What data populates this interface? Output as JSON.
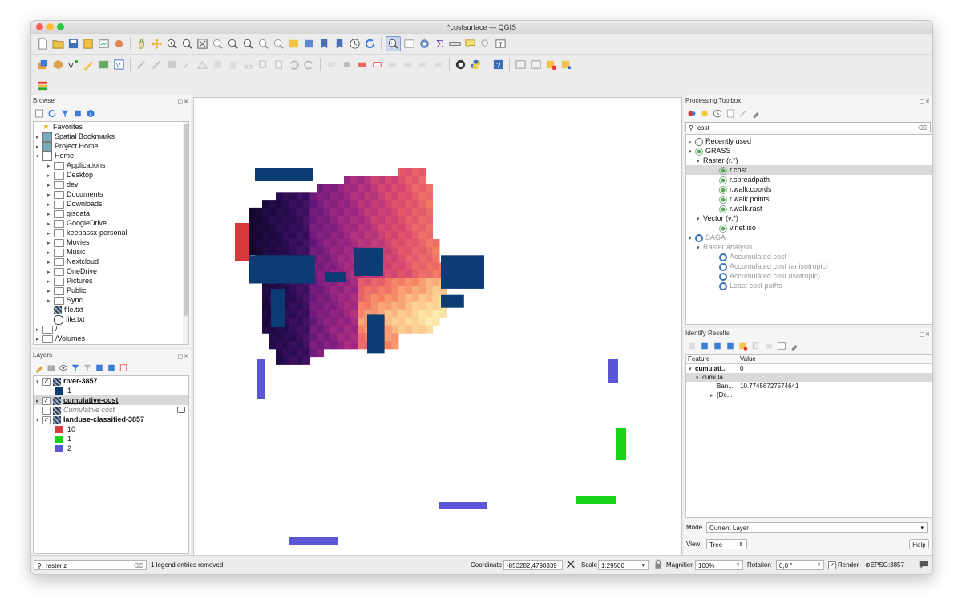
{
  "window": {
    "title": "*costsurface — QGIS"
  },
  "browser": {
    "title": "Browser",
    "items": [
      {
        "label": "Favorites",
        "icon": "star-icon"
      },
      {
        "label": "Spatial Bookmarks",
        "icon": "bookmark-icon"
      },
      {
        "label": "Project Home",
        "icon": "project-home-icon"
      },
      {
        "label": "Home",
        "icon": "home-icon"
      },
      {
        "label": "Applications",
        "icon": "folder-icon"
      },
      {
        "label": "Desktop",
        "icon": "folder-icon"
      },
      {
        "label": "dev",
        "icon": "folder-icon"
      },
      {
        "label": "Documents",
        "icon": "folder-icon"
      },
      {
        "label": "Downloads",
        "icon": "folder-icon"
      },
      {
        "label": "gisdata",
        "icon": "folder-icon"
      },
      {
        "label": "GoogleDrive",
        "icon": "folder-icon"
      },
      {
        "label": "keepassx-personal",
        "icon": "folder-icon"
      },
      {
        "label": "Movies",
        "icon": "folder-icon"
      },
      {
        "label": "Music",
        "icon": "folder-icon"
      },
      {
        "label": "Nextcloud",
        "icon": "folder-icon"
      },
      {
        "label": "OneDrive",
        "icon": "folder-icon"
      },
      {
        "label": "Pictures",
        "icon": "folder-icon"
      },
      {
        "label": "Public",
        "icon": "folder-icon"
      },
      {
        "label": "Sync",
        "icon": "folder-icon"
      },
      {
        "label": "file.txt",
        "icon": "raster-file-icon"
      },
      {
        "label": "file.txt",
        "icon": "vector-file-icon"
      },
      {
        "label": "/",
        "icon": "folder-icon"
      },
      {
        "label": "/Volumes",
        "icon": "folder-icon"
      }
    ]
  },
  "layers": {
    "title": "Layers",
    "items": [
      {
        "label": "river-3857",
        "checked": true
      },
      {
        "label": "1",
        "swatch": "#0b3c74"
      },
      {
        "label": "cumulative-cost",
        "checked": true
      },
      {
        "label": "Cumulative cost",
        "checked": false
      },
      {
        "label": "landuse-classified-3857",
        "checked": true
      },
      {
        "label": "10",
        "swatch": "#d63a3a"
      },
      {
        "label": "1",
        "swatch": "#19d319"
      },
      {
        "label": "2",
        "swatch": "#5b56d6"
      }
    ]
  },
  "toolbox": {
    "title": "Processing Toolbox",
    "search": "cost",
    "items": [
      {
        "label": "Recently used"
      },
      {
        "label": "GRASS"
      },
      {
        "label": "Raster (r.*)"
      },
      {
        "label": "r.cost"
      },
      {
        "label": "r.spreadpath"
      },
      {
        "label": "r.walk.coords"
      },
      {
        "label": "r.walk.points"
      },
      {
        "label": "r.walk.rast"
      },
      {
        "label": "Vector (v.*)"
      },
      {
        "label": "v.net.iso"
      },
      {
        "label": "SAGA"
      },
      {
        "label": "Raster analysis"
      },
      {
        "label": "Accumulated cost"
      },
      {
        "label": "Accumulated cost (anisotropic)"
      },
      {
        "label": "Accumulated cost (isotropic)"
      },
      {
        "label": "Least cost paths"
      }
    ]
  },
  "identify": {
    "title": "Identify Results",
    "col_feature": "Feature",
    "col_value": "Value",
    "rows": [
      {
        "feature": "cumulati...",
        "value": "0"
      },
      {
        "feature": "cumula...",
        "value": ""
      },
      {
        "feature": "Ban...",
        "value": "10.77456727574641"
      },
      {
        "feature": "(De...",
        "value": ""
      }
    ],
    "mode_label": "Mode",
    "mode_value": "Current Layer",
    "view_label": "View",
    "view_value": "Tree",
    "help_label": "Help"
  },
  "status": {
    "search_value": "rasteriz",
    "message": "1 legend entries removed.",
    "coordinate_label": "Coordinate",
    "coordinate_value": "-853282,4798339",
    "scale_label": "Scale",
    "scale_value": "1:29500",
    "magnifier_label": "Magnifier",
    "magnifier_value": "100%",
    "rotation_label": "Rotation",
    "rotation_value": "0,0 °",
    "render_label": "Render",
    "crs_label": "EPSG:3857"
  },
  "colors": {
    "river": "#0b3c74",
    "landuse_10": "#d63a3a",
    "landuse_1": "#19d319",
    "landuse_2": "#5b56d6",
    "cost_low": "#0b0620",
    "cost_high": "#fcf4b8"
  }
}
